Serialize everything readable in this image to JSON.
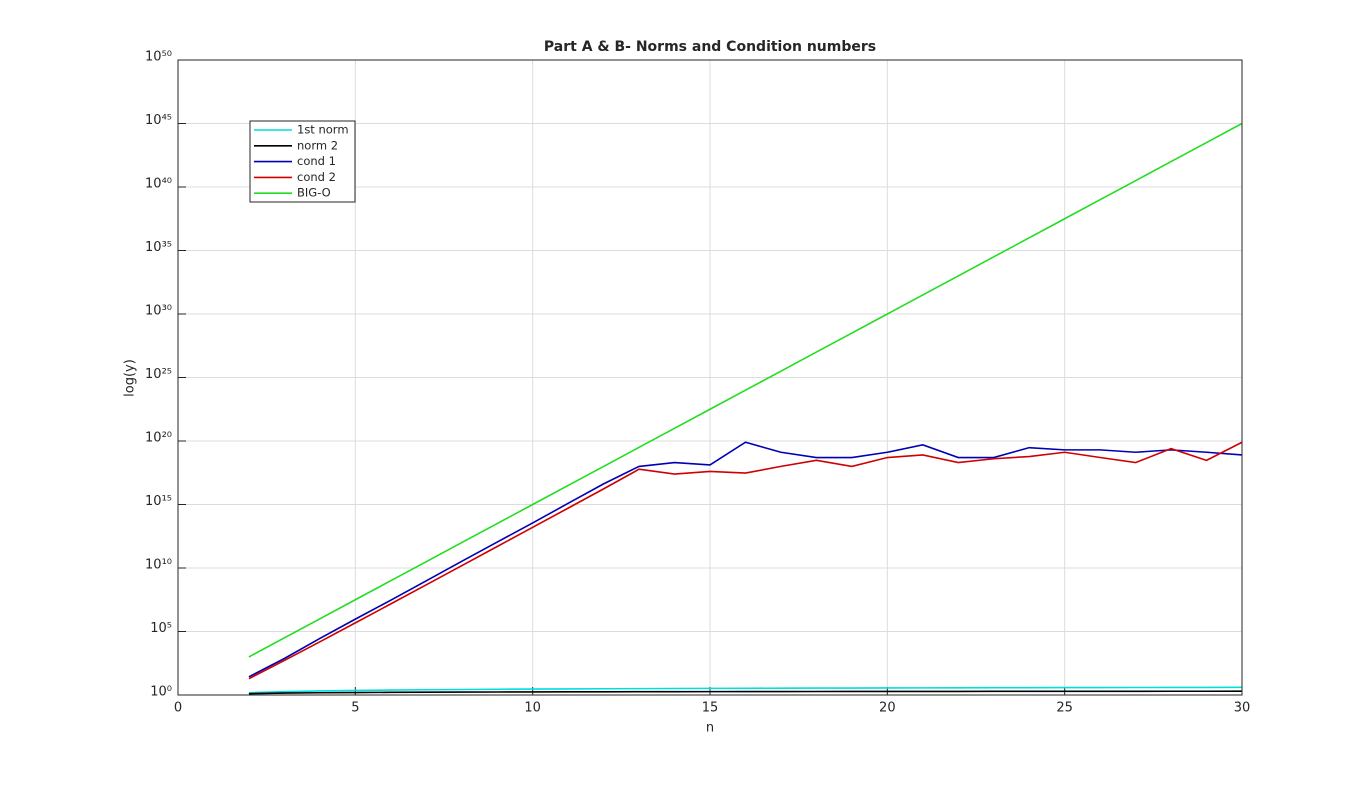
{
  "chart_data": {
    "type": "line",
    "title": "Part A & B- Norms and Condition numbers",
    "x_label": "n",
    "y_label": "log(y)",
    "x": [
      2,
      3,
      4,
      5,
      6,
      7,
      8,
      9,
      10,
      11,
      12,
      13,
      14,
      15,
      16,
      17,
      18,
      19,
      20,
      21,
      22,
      23,
      24,
      25,
      26,
      27,
      28,
      29,
      30
    ],
    "series": [
      {
        "name": "1st norm",
        "color": "#00dede",
        "values": [
          1.5,
          1.8333,
          2.0833,
          2.2833,
          2.45,
          2.5929,
          2.7179,
          2.829,
          2.929,
          3.0199,
          3.1032,
          3.1801,
          3.2516,
          3.3182,
          3.3807,
          3.4396,
          3.4951,
          3.5477,
          3.5977,
          3.6454,
          3.6908,
          3.7344,
          3.776,
          3.816,
          3.8544,
          3.8915,
          3.9272,
          3.9617,
          3.995
        ]
      },
      {
        "name": "norm 2",
        "color": "#000000",
        "values": [
          1.2676,
          1.4083,
          1.5002,
          1.5671,
          1.6189,
          1.6609,
          1.6959,
          1.7259,
          1.7519,
          1.7749,
          1.7954,
          1.8139,
          1.8306,
          1.8459,
          1.86,
          1.8729,
          1.8849,
          1.8961,
          1.9066,
          1.9163,
          1.9255,
          1.9341,
          1.9423,
          1.95,
          1.9573,
          1.9642,
          1.9708,
          1.9771,
          1.9831
        ]
      },
      {
        "name": "cond 1",
        "color": "#0000b4",
        "values": [
          27,
          748,
          28375,
          943656,
          29070000.0,
          985200000.0,
          33870000000.0,
          1100000000000.0,
          35350000000000.0,
          1230000000000000.0,
          4.2e+16,
          1e+18,
          2e+18,
          1.3e+18,
          8e+19,
          1.3e+19,
          5e+18,
          5e+18,
          1.3e+19,
          5e+19,
          5e+18,
          5e+18,
          3e+19,
          2e+19,
          2e+19,
          1.3e+19,
          2e+19,
          1.3e+19,
          8e+18
        ]
      },
      {
        "name": "cond 2",
        "color": "#d00000",
        "values": [
          19.28,
          524,
          15514,
          476607,
          14950000.0,
          475400000.0,
          15260000000.0,
          493000000000.0,
          16000000000000.0,
          520000000000000.0,
          1.7e+16,
          6e+17,
          2.5e+17,
          4e+17,
          3e+17,
          1e+18,
          3e+18,
          1e+18,
          5e+18,
          8e+18,
          2e+18,
          4e+18,
          6e+18,
          1.3e+19,
          5e+18,
          2e+18,
          2.5e+19,
          3e+18,
          8e+19
        ]
      },
      {
        "name": "BIG-O",
        "color": "#22dd22",
        "values": [
          1000.0,
          31600.0,
          1000000.0,
          31600000.0,
          1000000000.0,
          31600000000.0,
          1000000000000.0,
          31600000000000.0,
          1000000000000000.0,
          3.16e+16,
          1e+18,
          3.16e+19,
          1e+21,
          3.16e+22,
          1e+24,
          3.16e+25,
          1e+27,
          3.16e+28,
          1e+30,
          3.16e+31,
          1e+33,
          3.16e+34,
          1e+36,
          3.16e+37,
          1e+39,
          3.16e+40,
          1e+42,
          3.16e+43,
          1e+45
        ]
      }
    ],
    "xlim": [
      0,
      30
    ],
    "xticks": [
      0,
      5,
      10,
      15,
      20,
      25,
      30
    ],
    "ylim": [
      1,
      1e+50
    ],
    "y_scale": "log",
    "yticks": [
      {
        "value": 1,
        "label": "10⁰"
      },
      {
        "value": 100000.0,
        "label": "10⁵"
      },
      {
        "value": 10000000000.0,
        "label": "10¹⁰"
      },
      {
        "value": 1000000000000000.0,
        "label": "10¹⁵"
      },
      {
        "value": 1e+20,
        "label": "10²⁰"
      },
      {
        "value": 1e+25,
        "label": "10²⁵"
      },
      {
        "value": 1e+30,
        "label": "10³⁰"
      },
      {
        "value": 1e+35,
        "label": "10³⁵"
      },
      {
        "value": 1e+40,
        "label": "10⁴⁰"
      },
      {
        "value": 1e+45,
        "label": "10⁴⁵"
      },
      {
        "value": 1e+50,
        "label": "10⁵⁰"
      }
    ],
    "grid": true,
    "legend_position": "upper-left"
  }
}
